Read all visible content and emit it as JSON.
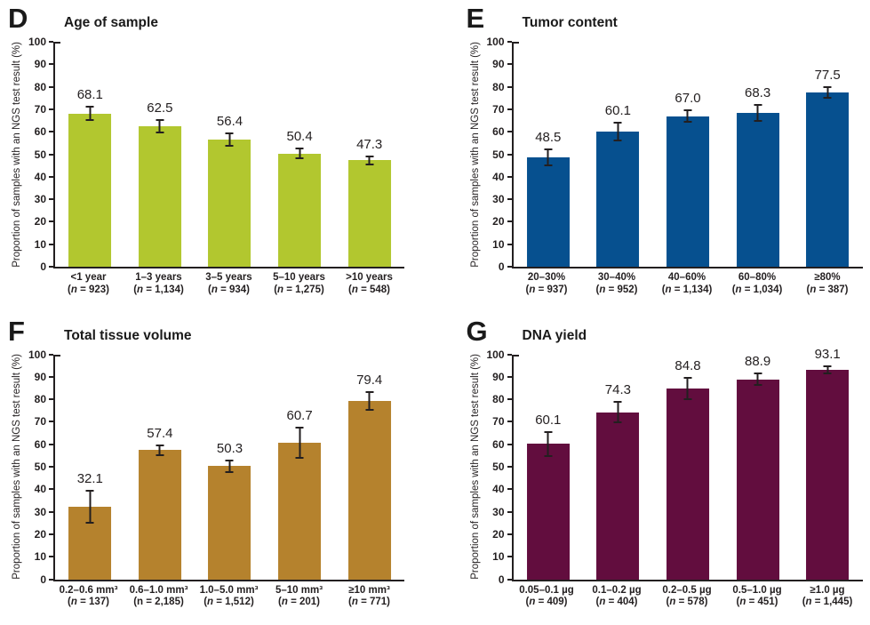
{
  "figure": {
    "ylabel": "Proportion of samples with an NGS test result (%)",
    "axis_color": "#231f20",
    "text_color": "#231f20",
    "background": "#ffffff"
  },
  "chart_data": [
    {
      "panel": "D",
      "type": "bar",
      "title": "Age of sample",
      "ylabel": "Proportion of samples with an NGS test result (%)",
      "ylim": [
        0,
        100
      ],
      "ytick_step": 10,
      "grid": false,
      "bar_color": "#b2c72f",
      "categories": [
        "<1 year",
        "1–3 years",
        "3–5 years",
        "5–10 years",
        ">10 years"
      ],
      "n": [
        "923",
        "1,134",
        "934",
        "1,275",
        "548"
      ],
      "n_italic": [
        true,
        true,
        true,
        true,
        true
      ],
      "values": [
        68.1,
        62.5,
        56.4,
        50.4,
        47.3
      ],
      "errors": [
        3.3,
        3.3,
        3.2,
        2.4,
        2.2
      ]
    },
    {
      "panel": "E",
      "type": "bar",
      "title": "Tumor content",
      "ylabel": "Proportion of samples with an NGS test result (%)",
      "ylim": [
        0,
        100
      ],
      "ytick_step": 10,
      "grid": false,
      "bar_color": "#06508f",
      "categories": [
        "20–30%",
        "30–40%",
        "40–60%",
        "60–80%",
        "≥80%"
      ],
      "n": [
        "937",
        "952",
        "1,134",
        "1,034",
        "387"
      ],
      "n_italic": [
        true,
        true,
        true,
        true,
        true
      ],
      "values": [
        48.5,
        60.1,
        67.0,
        68.3,
        77.5
      ],
      "errors": [
        3.9,
        4.2,
        2.9,
        3.9,
        2.6
      ]
    },
    {
      "panel": "F",
      "type": "bar",
      "title": "Total tissue volume",
      "ylabel": "Proportion of samples with an NGS test result (%)",
      "ylim": [
        0,
        100
      ],
      "ytick_step": 10,
      "grid": false,
      "bar_color": "#b5822d",
      "categories": [
        "0.2–0.6 mm³",
        "0.6–1.0 mm³",
        "1.0–5.0 mm³",
        "5–10 mm³",
        "≥10 mm³"
      ],
      "n": [
        "137",
        "2,185",
        "1,512",
        "201",
        "771"
      ],
      "n_italic": [
        true,
        false,
        true,
        true,
        true
      ],
      "values": [
        32.1,
        57.4,
        50.3,
        60.7,
        79.4
      ],
      "errors": [
        7.5,
        2.6,
        3.0,
        7.2,
        4.4
      ]
    },
    {
      "panel": "G",
      "type": "bar",
      "title": "DNA yield",
      "ylabel": "Proportion of samples with an NGS test result (%)",
      "ylim": [
        0,
        100
      ],
      "ytick_step": 10,
      "grid": false,
      "bar_color": "#620d3e",
      "categories": [
        "0.05–0.1 µg",
        "0.1–0.2 µg",
        "0.2–0.5 µg",
        "0.5–1.0 µg",
        "≥1.0 µg"
      ],
      "n": [
        "409",
        "404",
        "578",
        "451",
        "1,445"
      ],
      "n_italic": [
        true,
        true,
        true,
        true,
        true
      ],
      "values": [
        60.1,
        74.3,
        84.8,
        88.9,
        93.1
      ],
      "errors": [
        5.8,
        5.0,
        5.2,
        3.1,
        2.0
      ]
    }
  ]
}
